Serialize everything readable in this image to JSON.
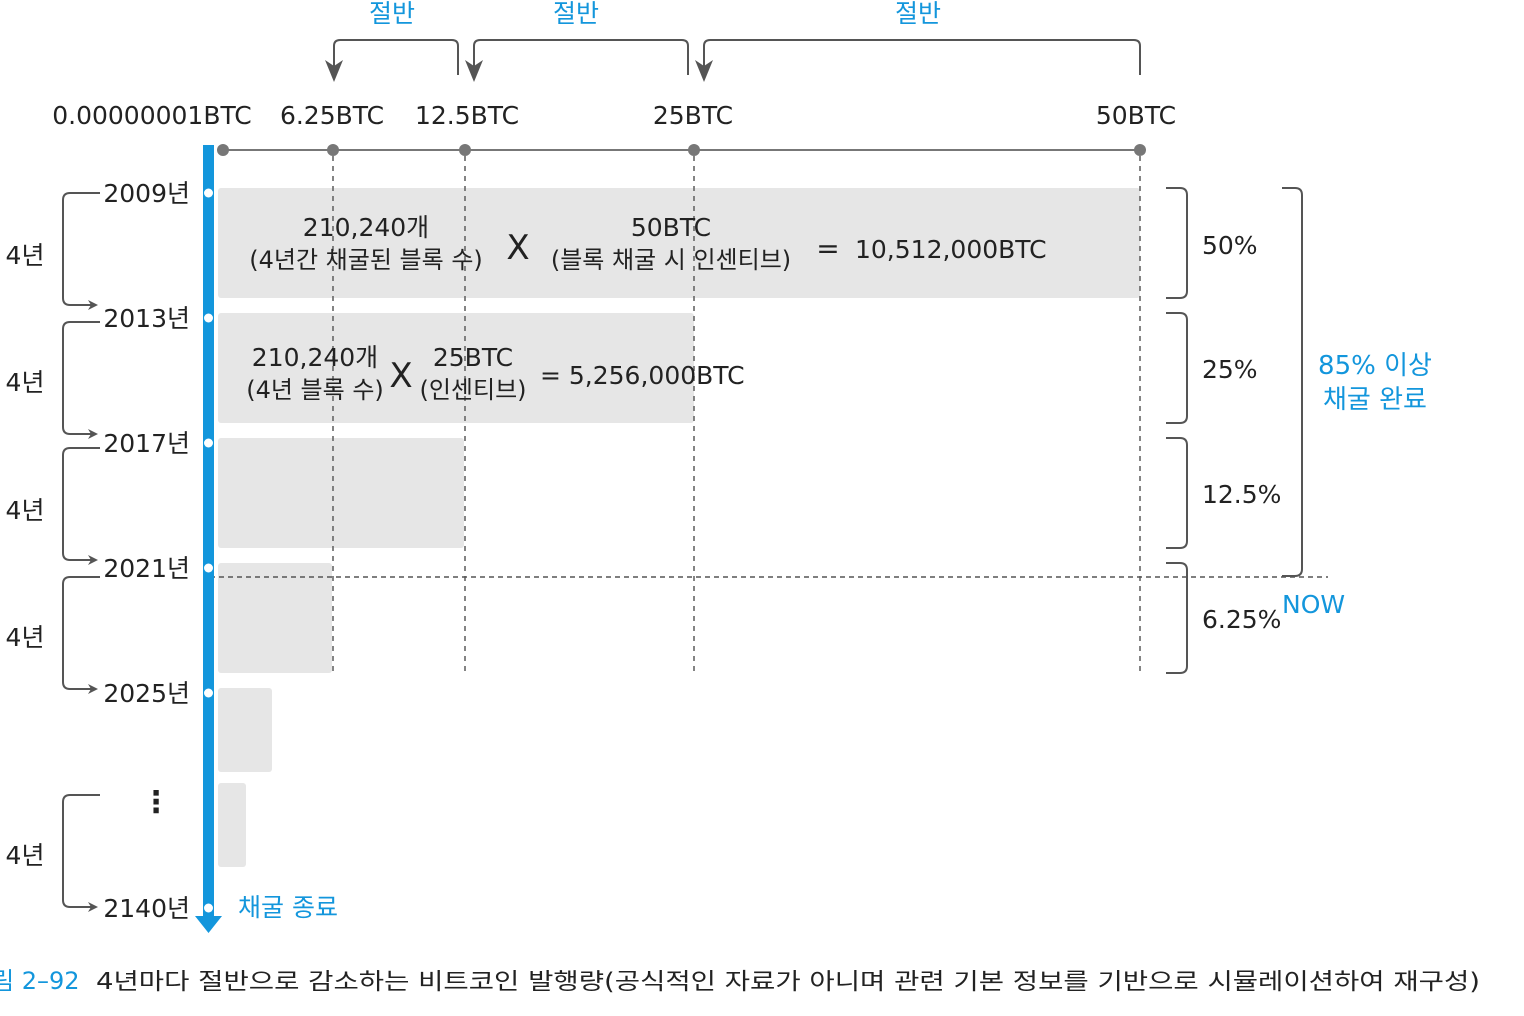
{
  "halving_labels": [
    "절반",
    "절반",
    "절반"
  ],
  "reward_labels": [
    "0.00000001BTC",
    "6.25BTC",
    "12.5BTC",
    "25BTC",
    "50BTC"
  ],
  "years": [
    "2009년",
    "2013년",
    "2017년",
    "2021년",
    "2025년",
    "2140년"
  ],
  "interval_label": "4년",
  "interval_labels": [
    "4년",
    "4년",
    "4년",
    "4년",
    "4년"
  ],
  "ellipsis": "⋮",
  "calc_2009": {
    "blocks": "210,240개",
    "blocks_note": "(4년간 채굴된 블록 수)",
    "times": "X",
    "reward": "50BTC",
    "reward_note": "(블록 채굴 시 인센티브)",
    "equals": "=",
    "total": "10,512,000BTC"
  },
  "calc_2013": {
    "blocks": "210,240개",
    "blocks_note": "(4년 블록 수)",
    "times": "X",
    "reward": "25BTC",
    "reward_note": "(인센티브)",
    "equals": "= 5,256,000BTC"
  },
  "percentages": [
    "50%",
    "25%",
    "12.5%",
    "6.25%"
  ],
  "now_label": "NOW",
  "summary_line1": "85% 이상",
  "summary_line2": "채굴 완료",
  "end_label": "채굴 종료",
  "caption_number": "림 2–92",
  "caption_text": "4년마다 절반으로 감소하는 비트코인 발행량(공식적인 자료가 아니며 관련 기본 정보를 기반으로 시뮬레이션하여 재구성)",
  "colors": {
    "accent": "#1396dc",
    "bar": "#e6e6e6",
    "line": "#666666",
    "text": "#222222"
  }
}
